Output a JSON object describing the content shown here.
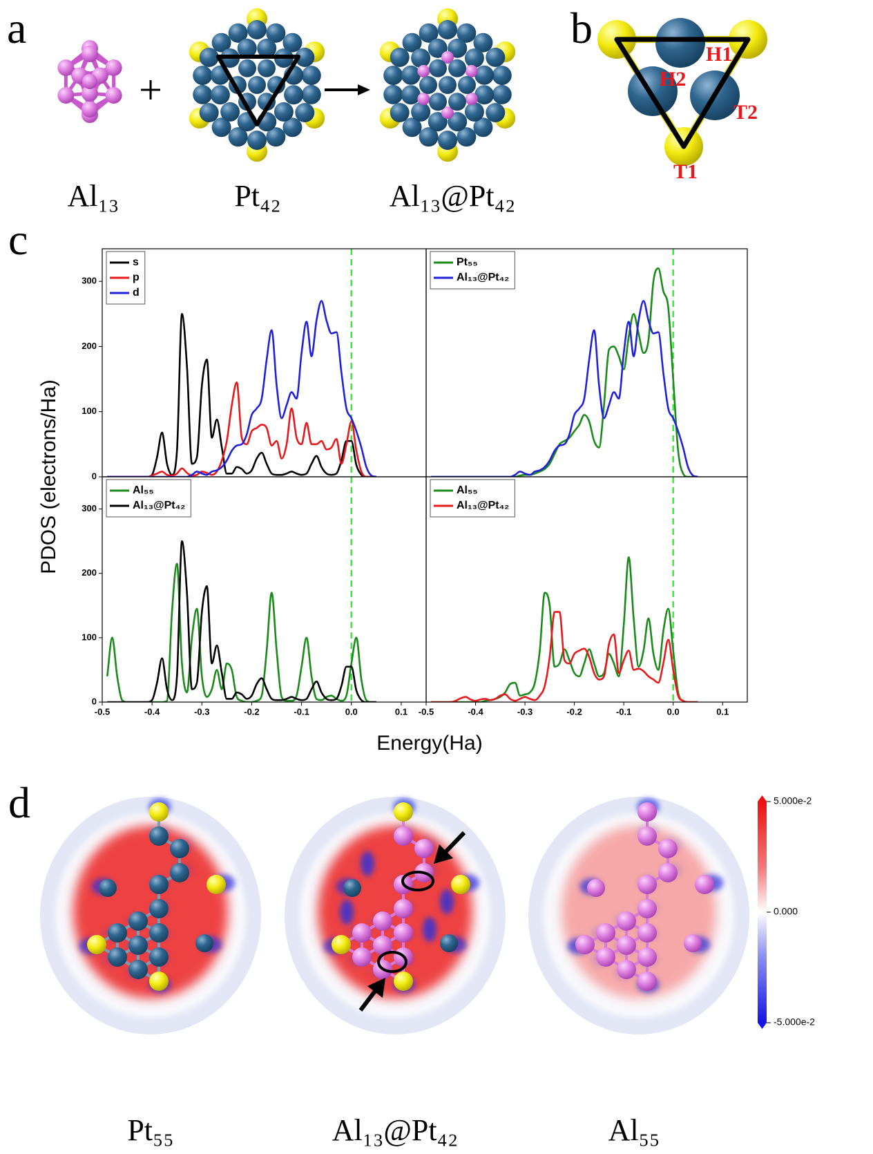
{
  "panel_labels": [
    "a",
    "b",
    "c",
    "d"
  ],
  "panel_a": {
    "captions": [
      "Al₁₃",
      "Pt₄₂",
      "Al₁₃@Pt₄₂"
    ]
  },
  "panel_b": {
    "site_labels": [
      "H1",
      "H2",
      "T2",
      "T1"
    ]
  },
  "figure_c": {
    "y_label": "PDOS (electrons/Ha)",
    "x_label": "Energy(Ha)"
  },
  "chart_data": [
    {
      "type": "line",
      "xlim": [
        -0.5,
        0.15
      ],
      "ylim": [
        0,
        350
      ],
      "yticks": [
        0,
        100,
        200,
        300
      ],
      "legend": "upper left",
      "reference_line": {
        "x": 0,
        "color": "#33ee33"
      },
      "x": [
        -0.49,
        -0.48,
        -0.47,
        -0.46,
        -0.45,
        -0.44,
        -0.43,
        -0.42,
        -0.41,
        -0.4,
        -0.39,
        -0.38,
        -0.37,
        -0.36,
        -0.35,
        -0.34,
        -0.33,
        -0.32,
        -0.31,
        -0.3,
        -0.29,
        -0.28,
        -0.27,
        -0.26,
        -0.25,
        -0.24,
        -0.23,
        -0.22,
        -0.21,
        -0.2,
        -0.19,
        -0.18,
        -0.17,
        -0.16,
        -0.15,
        -0.14,
        -0.13,
        -0.12,
        -0.11,
        -0.1,
        -0.09,
        -0.08,
        -0.07,
        -0.06,
        -0.05,
        -0.04,
        -0.03,
        -0.02,
        -0.01,
        0,
        0.01,
        0.02,
        0.03,
        0.04,
        0.05
      ],
      "series": [
        {
          "name": "s",
          "color": "#000000",
          "values": [
            0,
            0,
            0,
            0,
            0,
            0,
            0,
            0,
            0,
            3,
            30,
            68,
            20,
            3,
            40,
            250,
            170,
            20,
            30,
            140,
            180,
            60,
            88,
            45,
            5,
            5,
            15,
            12,
            5,
            10,
            28,
            37,
            20,
            5,
            3,
            3,
            5,
            8,
            5,
            3,
            5,
            20,
            32,
            15,
            5,
            3,
            5,
            25,
            55,
            55,
            18,
            3,
            0,
            0,
            0
          ]
        },
        {
          "name": "p",
          "color": "#e8191c",
          "values": [
            0,
            0,
            0,
            0,
            0,
            0,
            0,
            0,
            0,
            2,
            5,
            8,
            3,
            2,
            5,
            13,
            6,
            2,
            3,
            8,
            6,
            3,
            8,
            25,
            55,
            110,
            145,
            60,
            50,
            70,
            75,
            80,
            75,
            48,
            55,
            28,
            50,
            105,
            60,
            50,
            83,
            50,
            50,
            55,
            42,
            45,
            58,
            20,
            50,
            85,
            40,
            8,
            0,
            0,
            0
          ]
        },
        {
          "name": "d",
          "color": "#2020d8",
          "values": [
            0,
            0,
            0,
            0,
            0,
            0,
            0,
            0,
            0,
            0,
            0,
            0,
            0,
            0,
            0,
            0,
            0,
            3,
            8,
            5,
            3,
            8,
            10,
            15,
            25,
            40,
            48,
            50,
            65,
            95,
            105,
            120,
            180,
            225,
            140,
            90,
            110,
            130,
            120,
            190,
            238,
            185,
            240,
            270,
            240,
            220,
            222,
            160,
            105,
            90,
            70,
            45,
            15,
            2,
            0
          ]
        }
      ]
    },
    {
      "type": "line",
      "xlim": [
        -0.5,
        0.15
      ],
      "ylim": [
        0,
        350
      ],
      "legend": "upper left",
      "reference_line": {
        "x": 0,
        "color": "#33ee33"
      },
      "x": [
        -0.49,
        -0.48,
        -0.47,
        -0.46,
        -0.45,
        -0.44,
        -0.43,
        -0.42,
        -0.41,
        -0.4,
        -0.39,
        -0.38,
        -0.37,
        -0.36,
        -0.35,
        -0.34,
        -0.33,
        -0.32,
        -0.31,
        -0.3,
        -0.29,
        -0.28,
        -0.27,
        -0.26,
        -0.25,
        -0.24,
        -0.23,
        -0.22,
        -0.21,
        -0.2,
        -0.19,
        -0.18,
        -0.17,
        -0.16,
        -0.15,
        -0.14,
        -0.13,
        -0.12,
        -0.11,
        -0.1,
        -0.09,
        -0.08,
        -0.07,
        -0.06,
        -0.05,
        -0.04,
        -0.03,
        -0.02,
        -0.01,
        0,
        0.01,
        0.02,
        0.03,
        0.04,
        0.05
      ],
      "series": [
        {
          "name": "Pt₅₅",
          "color": "#1a8a1a",
          "values": [
            0,
            0,
            0,
            0,
            0,
            0,
            0,
            0,
            0,
            0,
            0,
            0,
            0,
            0,
            0,
            0,
            0,
            0,
            2,
            3,
            3,
            5,
            8,
            12,
            20,
            35,
            50,
            55,
            60,
            70,
            80,
            95,
            85,
            55,
            45,
            110,
            195,
            200,
            185,
            165,
            215,
            250,
            220,
            190,
            210,
            300,
            320,
            285,
            260,
            150,
            40,
            5,
            0,
            0,
            0
          ]
        },
        {
          "name": "Al₁₃@Pt₄₂",
          "color": "#2020d8",
          "values": [
            0,
            0,
            0,
            0,
            0,
            0,
            0,
            0,
            0,
            0,
            0,
            0,
            0,
            0,
            0,
            0,
            0,
            3,
            8,
            5,
            3,
            8,
            10,
            15,
            25,
            40,
            48,
            50,
            65,
            95,
            105,
            120,
            180,
            225,
            140,
            90,
            110,
            130,
            120,
            190,
            238,
            185,
            240,
            270,
            240,
            220,
            222,
            160,
            105,
            90,
            70,
            45,
            15,
            2,
            0
          ]
        }
      ]
    },
    {
      "type": "line",
      "xlim": [
        -0.5,
        0.15
      ],
      "ylim": [
        0,
        350
      ],
      "yticks": [
        0,
        100,
        200,
        300
      ],
      "xticks": [
        -0.5,
        -0.4,
        -0.3,
        -0.2,
        -0.1,
        {
          "value": 0,
          "label": "0.0"
        },
        0.1
      ],
      "legend": "upper left",
      "reference_line": {
        "x": 0,
        "color": "#33ee33"
      },
      "x": [
        -0.49,
        -0.48,
        -0.47,
        -0.46,
        -0.45,
        -0.44,
        -0.43,
        -0.42,
        -0.41,
        -0.4,
        -0.39,
        -0.38,
        -0.37,
        -0.36,
        -0.35,
        -0.34,
        -0.33,
        -0.32,
        -0.31,
        -0.3,
        -0.29,
        -0.28,
        -0.27,
        -0.26,
        -0.25,
        -0.24,
        -0.23,
        -0.22,
        -0.21,
        -0.2,
        -0.19,
        -0.18,
        -0.17,
        -0.16,
        -0.15,
        -0.14,
        -0.13,
        -0.12,
        -0.11,
        -0.1,
        -0.09,
        -0.08,
        -0.07,
        -0.06,
        -0.05,
        -0.04,
        -0.03,
        -0.02,
        -0.01,
        0,
        0.01,
        0.02,
        0.03,
        0.04,
        0.05
      ],
      "series": [
        {
          "name": "Al₅₅",
          "color": "#1a8a1a",
          "values": [
            40,
            100,
            40,
            3,
            0,
            0,
            0,
            0,
            0,
            0,
            0,
            0,
            2,
            140,
            215,
            60,
            15,
            100,
            145,
            40,
            8,
            20,
            50,
            20,
            60,
            50,
            8,
            2,
            0,
            0,
            2,
            10,
            80,
            170,
            80,
            8,
            2,
            2,
            10,
            55,
            100,
            40,
            5,
            3,
            8,
            10,
            5,
            2,
            10,
            60,
            100,
            35,
            3,
            0,
            0
          ]
        },
        {
          "name": "Al₁₃@Pt₄₂",
          "color": "#000000",
          "values": [
            0,
            0,
            0,
            0,
            0,
            0,
            0,
            0,
            0,
            3,
            30,
            68,
            20,
            3,
            40,
            250,
            170,
            20,
            30,
            140,
            180,
            60,
            88,
            45,
            5,
            5,
            15,
            12,
            5,
            10,
            28,
            37,
            20,
            5,
            3,
            3,
            5,
            8,
            5,
            3,
            5,
            20,
            32,
            15,
            5,
            3,
            5,
            25,
            55,
            55,
            18,
            3,
            0,
            0,
            0
          ]
        }
      ]
    },
    {
      "type": "line",
      "xlim": [
        -0.5,
        0.15
      ],
      "ylim": [
        0,
        350
      ],
      "xticks": [
        -0.5,
        -0.4,
        -0.3,
        -0.2,
        -0.1,
        {
          "value": 0,
          "label": "0.0"
        },
        0.1
      ],
      "legend": "upper left",
      "reference_line": {
        "x": 0,
        "color": "#33ee33"
      },
      "x": [
        -0.49,
        -0.48,
        -0.47,
        -0.46,
        -0.45,
        -0.44,
        -0.43,
        -0.42,
        -0.41,
        -0.4,
        -0.39,
        -0.38,
        -0.37,
        -0.36,
        -0.35,
        -0.34,
        -0.33,
        -0.32,
        -0.31,
        -0.3,
        -0.29,
        -0.28,
        -0.27,
        -0.26,
        -0.25,
        -0.24,
        -0.23,
        -0.22,
        -0.21,
        -0.2,
        -0.19,
        -0.18,
        -0.17,
        -0.16,
        -0.15,
        -0.14,
        -0.13,
        -0.12,
        -0.11,
        -0.1,
        -0.09,
        -0.08,
        -0.07,
        -0.06,
        -0.05,
        -0.04,
        -0.03,
        -0.02,
        -0.01,
        0,
        0.01,
        0.02,
        0.03,
        0.04,
        0.05
      ],
      "series": [
        {
          "name": "Al₅₅",
          "color": "#1a8a1a",
          "values": [
            0,
            0,
            0,
            0,
            0,
            0,
            0,
            0,
            0,
            0,
            0,
            2,
            3,
            5,
            8,
            15,
            28,
            30,
            10,
            12,
            15,
            30,
            80,
            170,
            150,
            55,
            60,
            82,
            65,
            45,
            40,
            60,
            82,
            60,
            40,
            45,
            75,
            60,
            40,
            120,
            225,
            130,
            55,
            80,
            130,
            75,
            50,
            110,
            145,
            80,
            15,
            2,
            0,
            0,
            0
          ]
        },
        {
          "name": "Al₁₃@Pt₄₂",
          "color": "#e8191c",
          "values": [
            0,
            0,
            0,
            0,
            0,
            2,
            6,
            8,
            4,
            2,
            4,
            5,
            3,
            5,
            10,
            12,
            5,
            2,
            5,
            8,
            5,
            3,
            10,
            25,
            70,
            140,
            140,
            65,
            60,
            75,
            80,
            83,
            70,
            45,
            35,
            40,
            90,
            105,
            45,
            65,
            80,
            50,
            52,
            48,
            40,
            35,
            30,
            60,
            97,
            50,
            10,
            2,
            0,
            0,
            0
          ]
        }
      ]
    }
  ],
  "panel_d": {
    "captions": [
      "Pt₅₅",
      "Al₁₃@Pt₄₂",
      "Al₅₅"
    ],
    "colorbar": {
      "lim": [
        -0.05,
        0.05
      ],
      "ticks": [
        {
          "value": 0.05,
          "label": "5.000e-2"
        },
        {
          "value": 0,
          "label": "0.000"
        },
        {
          "value": -0.05,
          "label": "-5.000e-2"
        }
      ]
    }
  }
}
